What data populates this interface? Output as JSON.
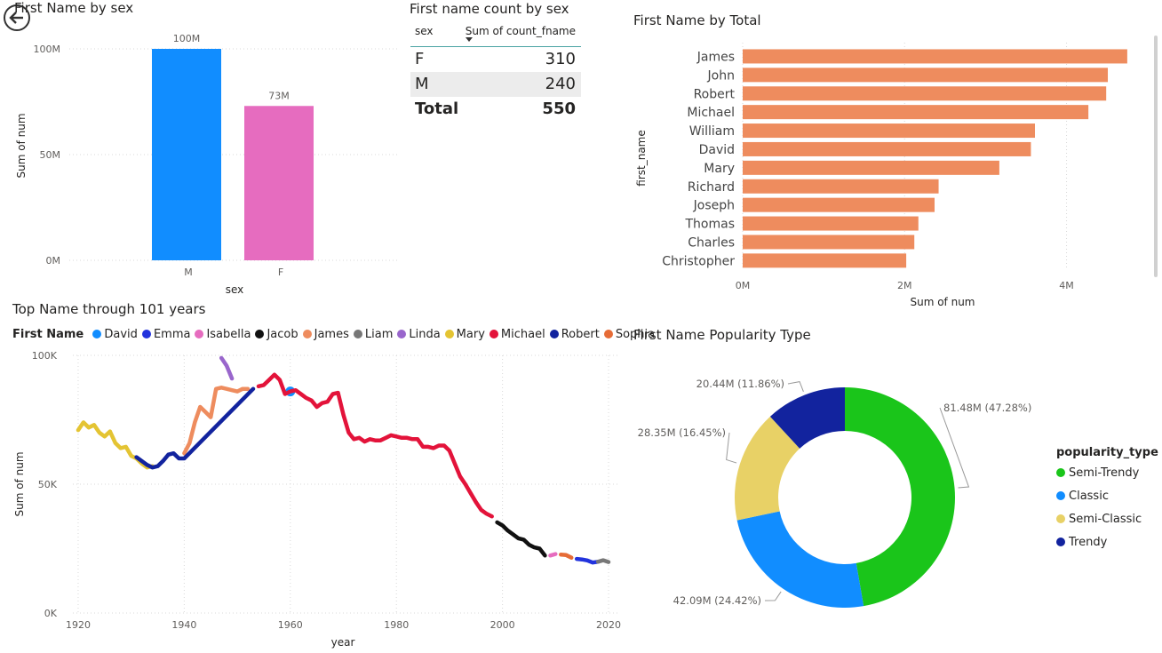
{
  "colors": {
    "axis_text": "#605e5c",
    "grid": "#d9d9d9"
  },
  "back_button": {
    "icon": "arrow-left-icon"
  },
  "chart_data": [
    {
      "id": "sex-bar",
      "type": "bar",
      "title": "First Name by sex",
      "xlabel": "sex",
      "ylabel": "Sum of num",
      "categories": [
        "M",
        "F"
      ],
      "values": [
        100,
        73
      ],
      "value_labels": [
        "100M",
        "73M"
      ],
      "colors": [
        "#118dff",
        "#e66c37"
      ],
      "bar_colors": [
        "#118DFF",
        "#E66CBF"
      ],
      "ylim": [
        0,
        100
      ],
      "yticks": [
        0,
        50,
        100
      ],
      "ytick_labels": [
        "0M",
        "50M",
        "100M"
      ],
      "grid": true
    },
    {
      "id": "count-table",
      "type": "table",
      "title": "First name count by sex",
      "columns": [
        "sex",
        "Sum of count_fname"
      ],
      "rows": [
        [
          "F",
          "310"
        ],
        [
          "M",
          "240"
        ]
      ],
      "total": [
        "Total",
        "550"
      ]
    },
    {
      "id": "total-hbar",
      "type": "bar",
      "orientation": "horizontal",
      "title": "First Name by Total",
      "xlabel": "Sum of num",
      "ylabel": "first_name",
      "categories": [
        "James",
        "John",
        "Robert",
        "Michael",
        "William",
        "David",
        "Mary",
        "Richard",
        "Joseph",
        "Thomas",
        "Charles",
        "Christopher"
      ],
      "values": [
        4.75,
        4.51,
        4.49,
        4.27,
        3.61,
        3.56,
        3.17,
        2.42,
        2.37,
        2.17,
        2.12,
        2.02
      ],
      "color": "#EE8C5E",
      "xlim": [
        0,
        4.85
      ],
      "xticks": [
        0,
        2,
        4
      ],
      "xtick_labels": [
        "0M",
        "2M",
        "4M"
      ],
      "grid": true
    },
    {
      "id": "top-name-line",
      "type": "line",
      "title": "Top Name through 101 years",
      "xlabel": "year",
      "ylabel": "Sum of num",
      "legend_title": "First Name",
      "legend_position": "top",
      "xlim": [
        1919,
        2021
      ],
      "ylim": [
        0,
        100000
      ],
      "xticks": [
        1920,
        1940,
        1960,
        1980,
        2000,
        2020
      ],
      "yticks": [
        0,
        50000,
        100000
      ],
      "ytick_labels": [
        "0K",
        "50K",
        "100K"
      ],
      "grid": true,
      "series": [
        {
          "name": "David",
          "color": "#118DFF",
          "x": [
            1960
          ],
          "y": [
            86000
          ]
        },
        {
          "name": "Emma",
          "color": "#2233dd",
          "x": [
            2014,
            2015,
            2016,
            2017,
            2018
          ],
          "y": [
            21000,
            20800,
            20400,
            19600,
            19900
          ]
        },
        {
          "name": "Isabella",
          "color": "#E66CBF",
          "x": [
            2009,
            2010
          ],
          "y": [
            22300,
            22900
          ]
        },
        {
          "name": "Jacob",
          "color": "#111111",
          "x": [
            1999,
            2000,
            2001,
            2002,
            2003,
            2004,
            2005,
            2006,
            2007,
            2008
          ],
          "y": [
            35200,
            34000,
            32000,
            30500,
            29000,
            28500,
            26500,
            25500,
            25000,
            22300
          ]
        },
        {
          "name": "James",
          "color": "#EE8C5E",
          "x": [
            1940,
            1941,
            1942,
            1943,
            1944,
            1945,
            1946,
            1947,
            1948,
            1949,
            1950,
            1951,
            1952
          ],
          "y": [
            62000,
            66000,
            74000,
            80000,
            78000,
            76000,
            87000,
            87500,
            87000,
            86500,
            86000,
            87000,
            87000
          ]
        },
        {
          "name": "Liam",
          "color": "#777777",
          "x": [
            2018,
            2019,
            2020
          ],
          "y": [
            19900,
            20500,
            19800
          ]
        },
        {
          "name": "Linda",
          "color": "#9966cc",
          "x": [
            1947,
            1948,
            1949
          ],
          "y": [
            99000,
            96000,
            91000
          ]
        },
        {
          "name": "Mary",
          "color": "#E4C433",
          "x": [
            1920,
            1921,
            1922,
            1923,
            1924,
            1925,
            1926,
            1927,
            1928,
            1929,
            1930,
            1931,
            1932,
            1933,
            1934
          ],
          "y": [
            71000,
            74000,
            72000,
            73000,
            70000,
            68500,
            70500,
            66000,
            64000,
            64500,
            61000,
            60000,
            58000,
            56500,
            57000
          ]
        },
        {
          "name": "Michael",
          "color": "#E3133A",
          "x": [
            1954,
            1955,
            1956,
            1957,
            1958,
            1959,
            1960,
            1961,
            1962,
            1963,
            1964,
            1965,
            1966,
            1967,
            1968,
            1969,
            1970,
            1971,
            1972,
            1973,
            1974,
            1975,
            1976,
            1977,
            1978,
            1979,
            1980,
            1981,
            1982,
            1983,
            1984,
            1985,
            1986,
            1987,
            1988,
            1989,
            1990,
            1991,
            1992,
            1993,
            1994,
            1995,
            1996,
            1997,
            1998
          ],
          "y": [
            88000,
            88500,
            90500,
            92500,
            90500,
            85000,
            86000,
            86500,
            85000,
            83500,
            82500,
            80000,
            81500,
            82000,
            85000,
            85500,
            77000,
            70000,
            67500,
            68000,
            66500,
            67500,
            67000,
            67000,
            68000,
            69000,
            68500,
            68000,
            68000,
            67500,
            67500,
            64500,
            64500,
            64000,
            65000,
            65000,
            63000,
            58000,
            53000,
            50000,
            46500,
            43000,
            40000,
            38500,
            37500
          ]
        },
        {
          "name": "Robert",
          "color": "#12239E",
          "x": [
            1931,
            1932,
            1933,
            1934,
            1935,
            1936,
            1937,
            1938,
            1939,
            1940,
            1953
          ],
          "y": [
            60500,
            59000,
            57500,
            56500,
            57000,
            59000,
            61500,
            62000,
            60000,
            60000,
            87000
          ]
        },
        {
          "name": "Sophia",
          "color": "#D64550",
          "x": [
            2011,
            2012,
            2013
          ],
          "y": [
            22700,
            22500,
            21500
          ]
        }
      ],
      "series_colors_override": [
        "#118DFF",
        "#2233dd",
        "#E66CBF",
        "#111111",
        "#EE8C5E",
        "#777777",
        "#9966cc",
        "#E4C433",
        "#E3133A",
        "#12239E",
        "#E66C37"
      ]
    },
    {
      "id": "popularity-donut",
      "type": "pie",
      "donut": true,
      "title": "First Name Popularity Type",
      "legend_title": "popularity_type",
      "legend_position": "right",
      "slices": [
        {
          "name": "Semi-Trendy",
          "value": 81.48,
          "label": "81.48M (47.28%)",
          "color": "#1AC51A"
        },
        {
          "name": "Classic",
          "value": 42.09,
          "label": "42.09M (24.42%)",
          "color": "#118DFF"
        },
        {
          "name": "Semi-Classic",
          "value": 28.35,
          "label": "28.35M (16.45%)",
          "color": "#E8D166"
        },
        {
          "name": "Trendy",
          "value": 20.44,
          "label": "20.44M (11.86%)",
          "color": "#12239E"
        }
      ]
    }
  ]
}
